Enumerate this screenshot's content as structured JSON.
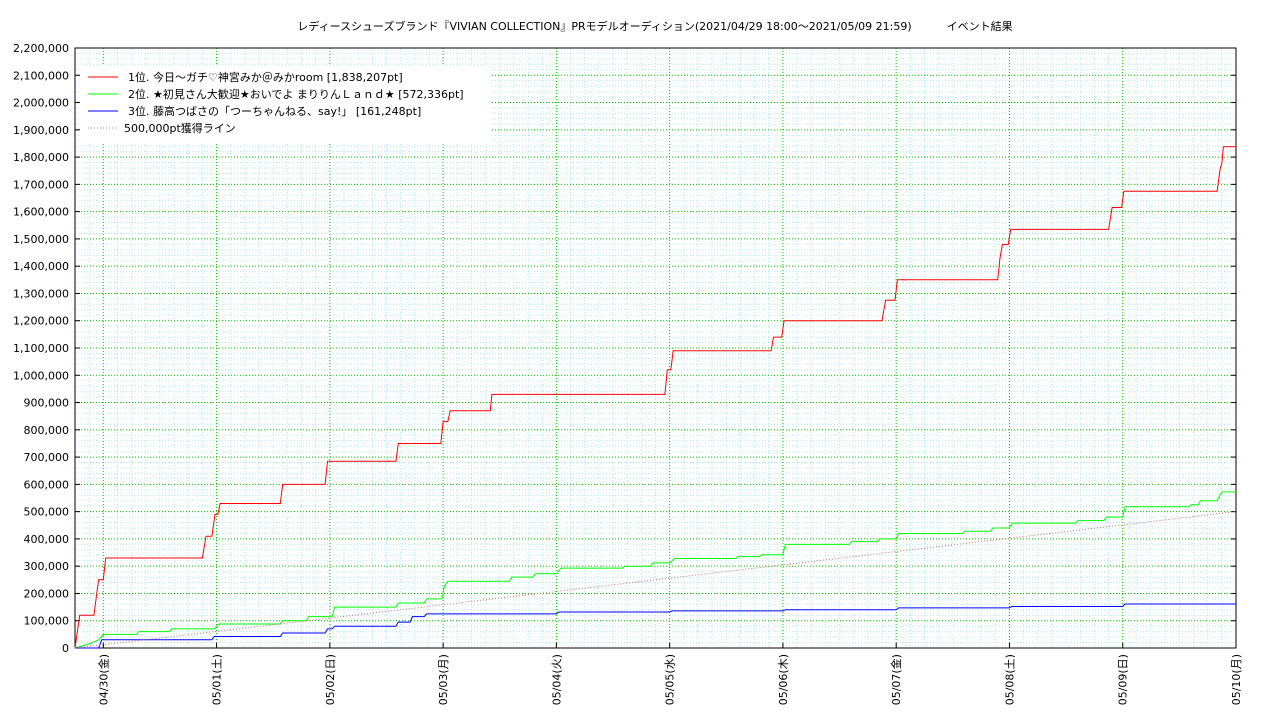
{
  "chart_data": {
    "type": "line",
    "title": "レディースシューズブランド『VIVIAN COLLECTION』PRモデルオーディション(2021/04/29 18:00～2021/05/09 21:59)          イベント結果",
    "xlabel": "",
    "ylabel": "",
    "ylim": [
      0,
      2200000
    ],
    "xlim": [
      "2021-04-29 18:00",
      "2021-05-10 00:00"
    ],
    "grid": true,
    "legend_position": "top-left",
    "x_ticks": [
      "04/30(金)",
      "05/01(土)",
      "05/02(日)",
      "05/03(月)",
      "05/04(火)",
      "05/05(水)",
      "05/06(木)",
      "05/07(金)",
      "05/08(土)",
      "05/09(日)",
      "05/10(月)"
    ],
    "y_ticks": [
      "0",
      "100,000",
      "200,000",
      "300,000",
      "400,000",
      "500,000",
      "600,000",
      "700,000",
      "800,000",
      "900,000",
      "1,000,000",
      "1,100,000",
      "1,200,000",
      "1,300,000",
      "1,400,000",
      "1,500,000",
      "1,600,000",
      "1,700,000",
      "1,800,000",
      "1,900,000",
      "2,000,000",
      "2,100,000",
      "2,200,000"
    ],
    "series": [
      {
        "name": "1位. 今日〜ガチ♡神宮みか＠みかroom [1,838,207pt]",
        "color": "#ff0000",
        "style": "step",
        "points": [
          [
            "2021-04-29 18:00",
            0
          ],
          [
            "2021-04-29 19:00",
            120000
          ],
          [
            "2021-04-29 22:00",
            120000
          ],
          [
            "2021-04-29 23:00",
            250000
          ],
          [
            "2021-04-30 00:00",
            250000
          ],
          [
            "2021-04-30 00:30",
            330000
          ],
          [
            "2021-04-30 21:00",
            330000
          ],
          [
            "2021-04-30 21:45",
            410000
          ],
          [
            "2021-04-30 23:00",
            410000
          ],
          [
            "2021-04-30 23:40",
            490000
          ],
          [
            "2021-05-01 00:15",
            490000
          ],
          [
            "2021-05-01 00:45",
            530000
          ],
          [
            "2021-05-01 13:30",
            530000
          ],
          [
            "2021-05-01 14:00",
            600000
          ],
          [
            "2021-05-01 23:00",
            600000
          ],
          [
            "2021-05-01 23:30",
            685000
          ],
          [
            "2021-05-02 14:00",
            685000
          ],
          [
            "2021-05-02 14:30",
            750000
          ],
          [
            "2021-05-02 23:30",
            750000
          ],
          [
            "2021-05-03 00:00",
            830000
          ],
          [
            "2021-05-03 01:00",
            830000
          ],
          [
            "2021-05-03 01:30",
            870000
          ],
          [
            "2021-05-03 10:00",
            870000
          ],
          [
            "2021-05-03 10:20",
            930000
          ],
          [
            "2021-05-04 23:00",
            930000
          ],
          [
            "2021-05-04 23:30",
            1020000
          ],
          [
            "2021-05-05 00:15",
            1020000
          ],
          [
            "2021-05-05 00:45",
            1090000
          ],
          [
            "2021-05-05 21:30",
            1090000
          ],
          [
            "2021-05-05 22:00",
            1140000
          ],
          [
            "2021-05-05 23:45",
            1140000
          ],
          [
            "2021-05-06 00:15",
            1200000
          ],
          [
            "2021-05-06 21:00",
            1200000
          ],
          [
            "2021-05-06 21:45",
            1275000
          ],
          [
            "2021-05-06 23:45",
            1275000
          ],
          [
            "2021-05-07 00:15",
            1350000
          ],
          [
            "2021-05-07 21:30",
            1350000
          ],
          [
            "2021-05-07 22:00",
            1430000
          ],
          [
            "2021-05-07 22:30",
            1480000
          ],
          [
            "2021-05-07 23:45",
            1480000
          ],
          [
            "2021-05-08 00:15",
            1535000
          ],
          [
            "2021-05-08 21:00",
            1535000
          ],
          [
            "2021-05-08 21:45",
            1615000
          ],
          [
            "2021-05-08 23:45",
            1615000
          ],
          [
            "2021-05-09 00:15",
            1675000
          ],
          [
            "2021-05-09 20:00",
            1675000
          ],
          [
            "2021-05-09 20:40",
            1760000
          ],
          [
            "2021-05-09 21:00",
            1775000
          ],
          [
            "2021-05-09 21:20",
            1838207
          ],
          [
            "2021-05-10 00:00",
            1838207
          ]
        ]
      },
      {
        "name": "2位. ★初見さん大歓迎★おいでよ まりりんＬａｎｄ★ [572,336pt]",
        "color": "#00ff00",
        "style": "step",
        "points": [
          [
            "2021-04-29 18:00",
            0
          ],
          [
            "2021-04-29 19:00",
            5000
          ],
          [
            "2021-04-29 21:00",
            15000
          ],
          [
            "2021-04-29 23:00",
            30000
          ],
          [
            "2021-04-30 00:00",
            50000
          ],
          [
            "2021-04-30 07:00",
            50000
          ],
          [
            "2021-04-30 07:30",
            60000
          ],
          [
            "2021-04-30 14:00",
            60000
          ],
          [
            "2021-04-30 14:30",
            70000
          ],
          [
            "2021-04-30 23:30",
            70000
          ],
          [
            "2021-05-01 00:30",
            88000
          ],
          [
            "2021-05-01 13:30",
            88000
          ],
          [
            "2021-05-01 14:00",
            100000
          ],
          [
            "2021-05-01 19:00",
            100000
          ],
          [
            "2021-05-01 19:30",
            115000
          ],
          [
            "2021-05-02 00:30",
            115000
          ],
          [
            "2021-05-02 01:00",
            150000
          ],
          [
            "2021-05-02 14:00",
            150000
          ],
          [
            "2021-05-02 14:30",
            165000
          ],
          [
            "2021-05-02 20:00",
            165000
          ],
          [
            "2021-05-02 20:30",
            180000
          ],
          [
            "2021-05-02 23:45",
            180000
          ],
          [
            "2021-05-03 00:15",
            225000
          ],
          [
            "2021-05-03 01:00",
            245000
          ],
          [
            "2021-05-03 14:00",
            245000
          ],
          [
            "2021-05-03 14:30",
            260000
          ],
          [
            "2021-05-03 19:00",
            260000
          ],
          [
            "2021-05-03 19:30",
            272000
          ],
          [
            "2021-05-04 00:00",
            272000
          ],
          [
            "2021-05-04 01:00",
            293000
          ],
          [
            "2021-05-04 14:00",
            293000
          ],
          [
            "2021-05-04 14:30",
            300000
          ],
          [
            "2021-05-04 20:00",
            300000
          ],
          [
            "2021-05-04 20:30",
            312000
          ],
          [
            "2021-05-05 00:00",
            312000
          ],
          [
            "2021-05-05 01:00",
            328000
          ],
          [
            "2021-05-05 14:00",
            328000
          ],
          [
            "2021-05-05 14:30",
            335000
          ],
          [
            "2021-05-05 19:00",
            335000
          ],
          [
            "2021-05-05 19:30",
            342000
          ],
          [
            "2021-05-06 00:00",
            342000
          ],
          [
            "2021-05-06 00:30",
            380000
          ],
          [
            "2021-05-06 14:00",
            380000
          ],
          [
            "2021-05-06 14:30",
            390000
          ],
          [
            "2021-05-06 20:00",
            390000
          ],
          [
            "2021-05-06 20:30",
            400000
          ],
          [
            "2021-05-07 00:00",
            400000
          ],
          [
            "2021-05-07 00:30",
            420000
          ],
          [
            "2021-05-07 14:00",
            420000
          ],
          [
            "2021-05-07 14:30",
            428000
          ],
          [
            "2021-05-07 20:00",
            428000
          ],
          [
            "2021-05-07 20:30",
            440000
          ],
          [
            "2021-05-08 00:00",
            440000
          ],
          [
            "2021-05-08 00:30",
            458000
          ],
          [
            "2021-05-08 14:00",
            458000
          ],
          [
            "2021-05-08 14:30",
            467000
          ],
          [
            "2021-05-08 20:00",
            467000
          ],
          [
            "2021-05-08 20:30",
            480000
          ],
          [
            "2021-05-09 00:00",
            480000
          ],
          [
            "2021-05-09 00:30",
            518000
          ],
          [
            "2021-05-09 14:00",
            518000
          ],
          [
            "2021-05-09 14:30",
            525000
          ],
          [
            "2021-05-09 16:00",
            525000
          ],
          [
            "2021-05-09 16:30",
            540000
          ],
          [
            "2021-05-09 20:00",
            540000
          ],
          [
            "2021-05-09 21:00",
            572336
          ],
          [
            "2021-05-10 00:00",
            572336
          ]
        ]
      },
      {
        "name": "3位. 藤高つばさの「つーちゃんねる、say!」 [161,248pt]",
        "color": "#0000ff",
        "style": "step",
        "points": [
          [
            "2021-04-29 18:00",
            0
          ],
          [
            "2021-04-29 23:00",
            0
          ],
          [
            "2021-04-29 23:40",
            30000
          ],
          [
            "2021-04-30 23:00",
            30000
          ],
          [
            "2021-04-30 23:30",
            42000
          ],
          [
            "2021-05-01 13:30",
            42000
          ],
          [
            "2021-05-01 14:00",
            55000
          ],
          [
            "2021-05-01 23:00",
            55000
          ],
          [
            "2021-05-01 23:30",
            70000
          ],
          [
            "2021-05-02 00:30",
            70000
          ],
          [
            "2021-05-02 01:00",
            80000
          ],
          [
            "2021-05-02 14:00",
            80000
          ],
          [
            "2021-05-02 14:30",
            95000
          ],
          [
            "2021-05-02 17:00",
            95000
          ],
          [
            "2021-05-02 17:30",
            115000
          ],
          [
            "2021-05-02 20:00",
            115000
          ],
          [
            "2021-05-02 20:30",
            125000
          ],
          [
            "2021-05-04 00:00",
            125000
          ],
          [
            "2021-05-04 00:30",
            132000
          ],
          [
            "2021-05-05 00:00",
            132000
          ],
          [
            "2021-05-05 00:30",
            136000
          ],
          [
            "2021-05-06 00:00",
            136000
          ],
          [
            "2021-05-06 00:30",
            140000
          ],
          [
            "2021-05-07 00:00",
            140000
          ],
          [
            "2021-05-07 00:30",
            147000
          ],
          [
            "2021-05-08 00:00",
            147000
          ],
          [
            "2021-05-08 00:30",
            152000
          ],
          [
            "2021-05-09 00:00",
            152000
          ],
          [
            "2021-05-09 00:30",
            161248
          ],
          [
            "2021-05-10 00:00",
            161248
          ]
        ]
      },
      {
        "name": "500,000pt獲得ライン",
        "color": "#c87060",
        "style": "dotted",
        "points": [
          [
            "2021-04-29 18:00",
            0
          ],
          [
            "2021-05-10 00:00",
            500000
          ]
        ]
      }
    ]
  }
}
